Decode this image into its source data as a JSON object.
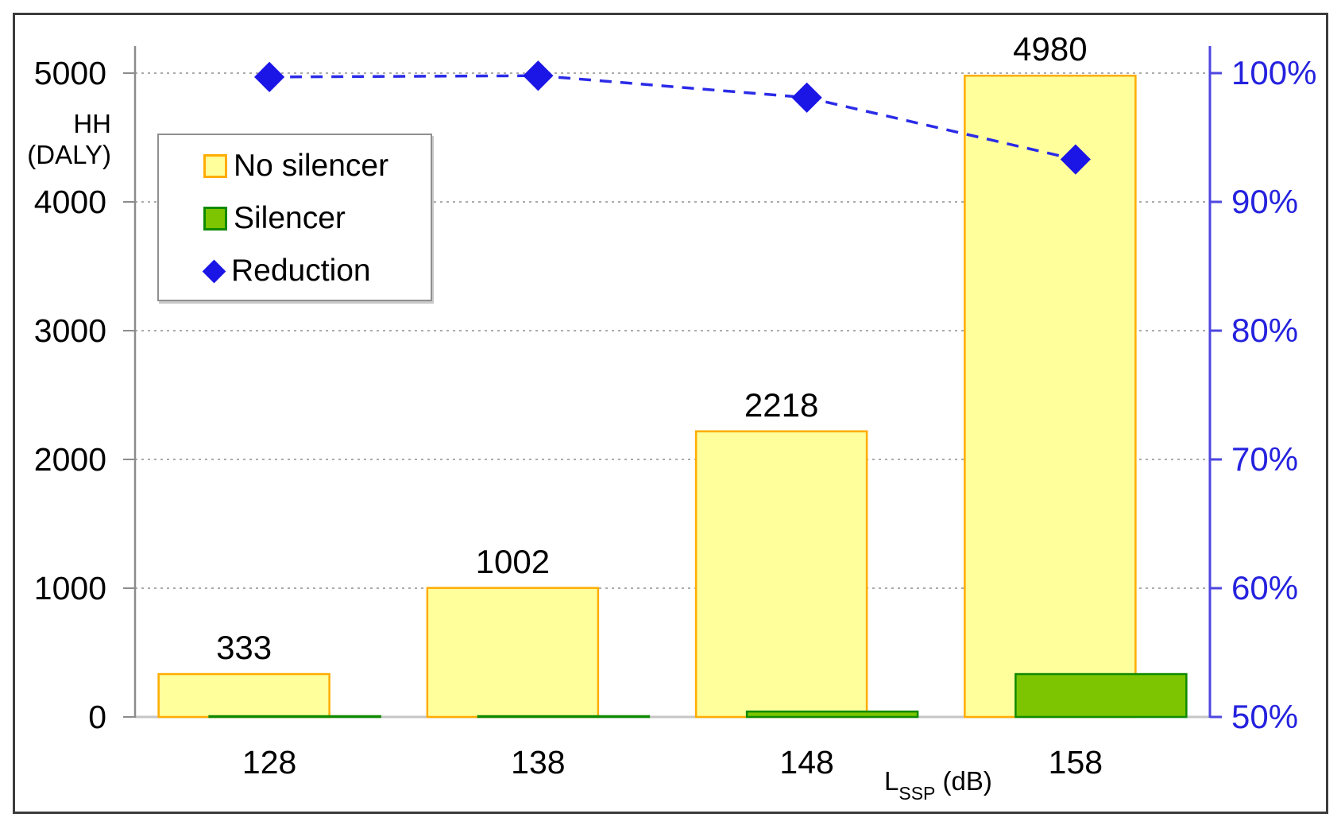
{
  "chart_data": {
    "type": "bar",
    "title": "",
    "categories": [
      "128",
      "138",
      "148",
      "158"
    ],
    "series": [
      {
        "name": "No silencer",
        "type": "bar",
        "axis": "left",
        "values": [
          333,
          1002,
          2218,
          4980
        ],
        "data_labels": [
          "333",
          "1002",
          "2218",
          "4980"
        ],
        "fill": "#FFFF9C",
        "stroke": "#FFAC00"
      },
      {
        "name": "Silencer",
        "type": "bar",
        "axis": "left",
        "values": [
          1,
          2,
          42,
          333
        ],
        "fill": "#7CC500",
        "stroke": "#0F8A00"
      },
      {
        "name": "Reduction",
        "type": "line",
        "axis": "right",
        "values_percent": [
          99.7,
          99.8,
          98.1,
          93.3
        ],
        "marker": "diamond",
        "line_style": "dashed",
        "color": "#1B15E6",
        "line_color": "#2B2BE8"
      }
    ],
    "left_axis": {
      "title_lines": [
        "HH",
        "(DALY)"
      ],
      "ticks": [
        "5000",
        "4000",
        "3000",
        "2000",
        "1000",
        "0"
      ],
      "min": 0,
      "max": 5000,
      "line_color": "#8C8C8C"
    },
    "right_axis": {
      "ticks": [
        "100%",
        "90%",
        "80%",
        "70%",
        "60%",
        "50%"
      ],
      "min_percent": 50,
      "max_percent": 100,
      "color": "#2522DE",
      "line_color": "#4E46E0"
    },
    "x_axis": {
      "title_main": "L",
      "title_subscript": "SSP",
      "title_suffix": " (dB)",
      "tick_labels": [
        "128",
        "138",
        "148",
        "158"
      ]
    },
    "legend": {
      "position": "top-left",
      "items": [
        {
          "label": "No silencer",
          "marker": "square",
          "fill": "#FFFF9C",
          "stroke": "#FFAC00"
        },
        {
          "label": "Silencer",
          "marker": "square",
          "fill": "#7CC500",
          "stroke": "#0F8A00"
        },
        {
          "label": "Reduction",
          "marker": "diamond",
          "fill": "#1B15E6"
        }
      ]
    },
    "gridlines": "horizontal-dotted",
    "gridline_color": "#ABABAB",
    "baseline_color": "#C6C6C6"
  }
}
